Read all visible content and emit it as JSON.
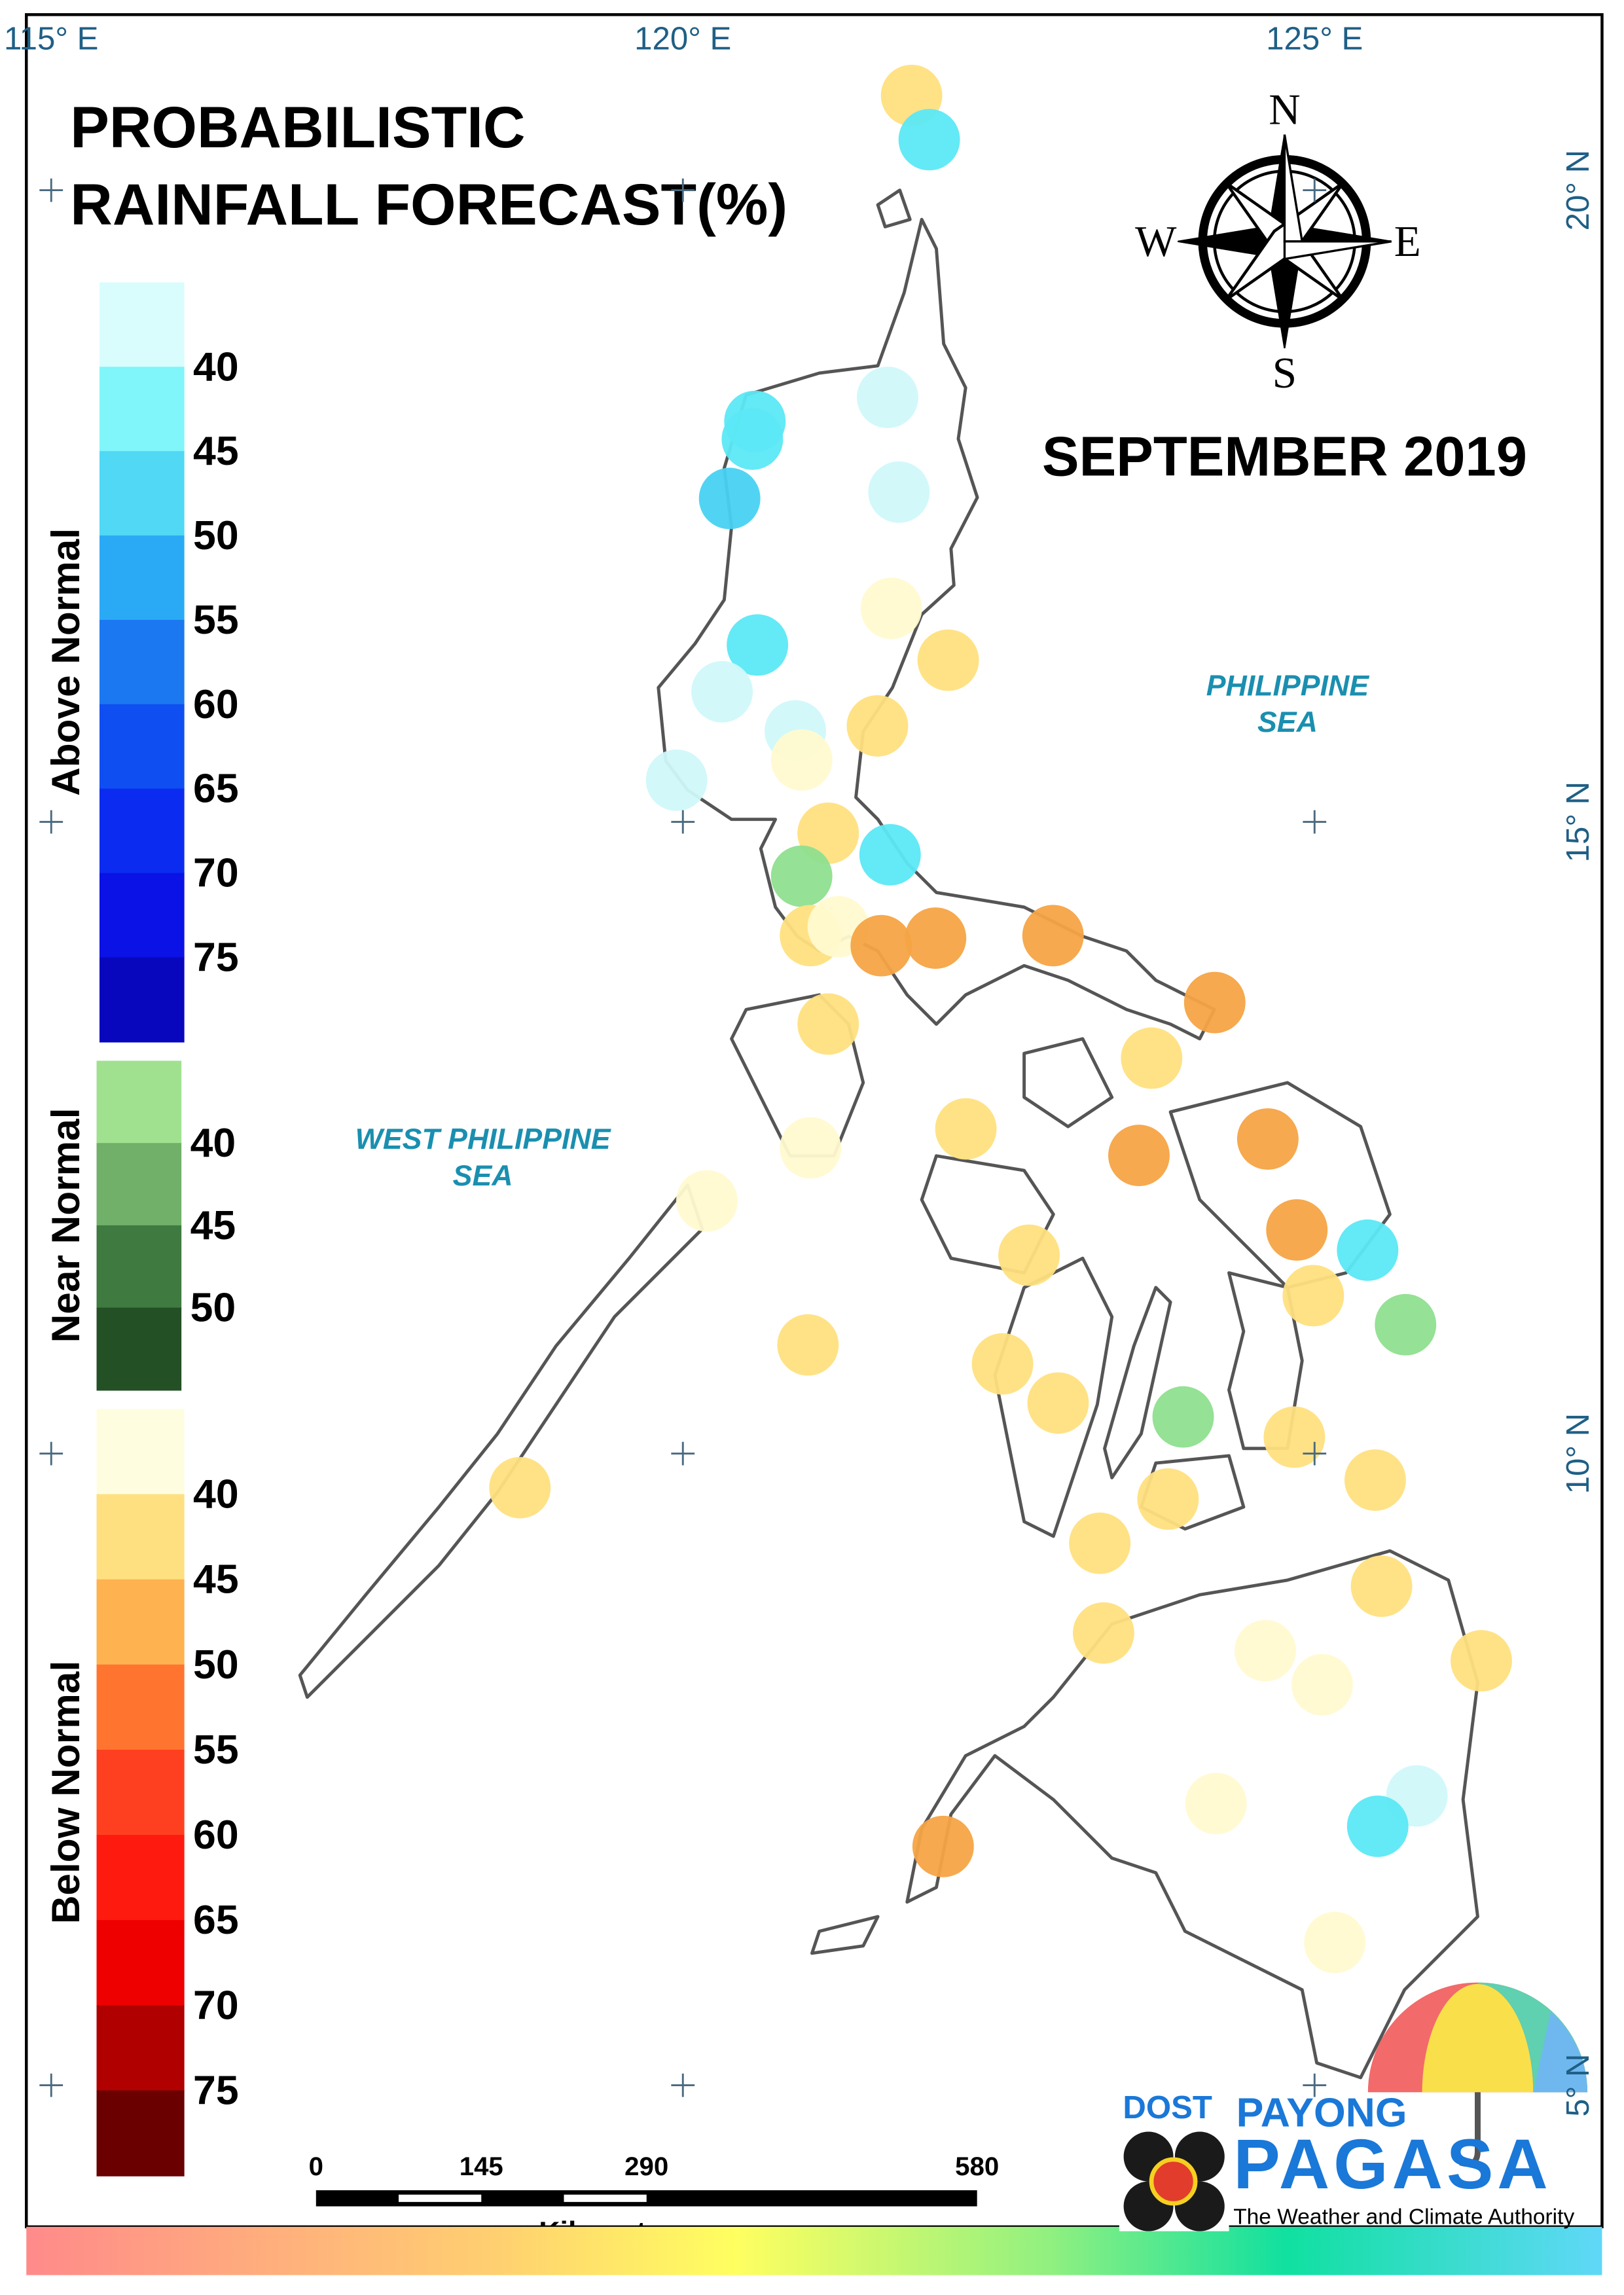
{
  "title": [
    "PROBABILISTIC",
    "RAINFALL FORECAST(%)"
  ],
  "period": "SEPTEMBER 2019",
  "compass": [
    "N",
    "E",
    "S",
    "W"
  ],
  "lon_ticks": [
    {
      "value": 115,
      "label": "115° E"
    },
    {
      "value": 120,
      "label": "120° E"
    },
    {
      "value": 125,
      "label": "125° E"
    }
  ],
  "lat_ticks": [
    {
      "value": 20,
      "label": "20° N"
    },
    {
      "value": 15,
      "label": "15° N"
    },
    {
      "value": 10,
      "label": "10° N"
    },
    {
      "value": 5,
      "label": "5° N"
    }
  ],
  "seas": [
    [
      "PHILIPPINE",
      "SEA"
    ],
    [
      "WEST PHILIPPINE",
      "SEA"
    ]
  ],
  "legend": [
    {
      "title": "Above Normal",
      "colors": [
        "#d9fdfd",
        "#80f5fa",
        "#50d8f5",
        "#2aaaf5",
        "#1b78f0",
        "#0f4ef0",
        "#0b2cf0",
        "#0a12e6",
        "#0807bd"
      ],
      "labels": [
        40,
        45,
        50,
        55,
        60,
        65,
        70,
        75
      ]
    },
    {
      "title": "Near Normal",
      "colors": [
        "#a0e190",
        "#70b068",
        "#3f7a40",
        "#245025"
      ],
      "labels": [
        40,
        45,
        50
      ]
    },
    {
      "title": "Below Normal",
      "colors": [
        "#fffde0",
        "#ffe080",
        "#ffb250",
        "#ff7530",
        "#ff4020",
        "#ff1a10",
        "#ee0000",
        "#b00000",
        "#6a0000"
      ],
      "labels": [
        40,
        45,
        50,
        55,
        60,
        65,
        70,
        75
      ]
    }
  ],
  "scale": {
    "ticks": [
      0,
      145,
      290,
      580
    ],
    "unit": "Kilometers"
  },
  "logo": {
    "agency": "DOST",
    "brand": [
      "PAYONG",
      "PAGASA"
    ],
    "tagline": "The Weather and Climate Authority"
  },
  "stations": [
    {
      "lon": 121.81,
      "lat": 20.75,
      "color": "#ffe080"
    },
    {
      "lon": 121.95,
      "lat": 20.4,
      "color": "#5ce8f5"
    },
    {
      "lon": 121.62,
      "lat": 18.36,
      "color": "#d0f8fa"
    },
    {
      "lon": 120.57,
      "lat": 18.17,
      "color": "#5ce8f5"
    },
    {
      "lon": 120.55,
      "lat": 18.03,
      "color": "#5ce8f5"
    },
    {
      "lon": 120.37,
      "lat": 17.56,
      "color": "#48d2f2"
    },
    {
      "lon": 121.71,
      "lat": 17.61,
      "color": "#d0f8fa"
    },
    {
      "lon": 121.65,
      "lat": 16.69,
      "color": "#fffad0"
    },
    {
      "lon": 122.1,
      "lat": 16.28,
      "color": "#ffe080"
    },
    {
      "lon": 120.59,
      "lat": 16.4,
      "color": "#5ce8f5"
    },
    {
      "lon": 120.31,
      "lat": 16.03,
      "color": "#d0f8fa"
    },
    {
      "lon": 121.54,
      "lat": 15.76,
      "color": "#ffe080"
    },
    {
      "lon": 120.89,
      "lat": 15.72,
      "color": "#d0f8fa"
    },
    {
      "lon": 120.94,
      "lat": 15.49,
      "color": "#fffad0"
    },
    {
      "lon": 119.95,
      "lat": 15.33,
      "color": "#d0f8fa"
    },
    {
      "lon": 121.15,
      "lat": 14.91,
      "color": "#ffe080"
    },
    {
      "lon": 121.64,
      "lat": 14.74,
      "color": "#5ce8f5"
    },
    {
      "lon": 120.94,
      "lat": 14.57,
      "color": "#8fdf8f"
    },
    {
      "lon": 121.01,
      "lat": 14.1,
      "color": "#ffe080"
    },
    {
      "lon": 121.23,
      "lat": 14.17,
      "color": "#fffad0"
    },
    {
      "lon": 121.57,
      "lat": 14.02,
      "color": "#f6a444"
    },
    {
      "lon": 122.0,
      "lat": 14.08,
      "color": "#f6a444"
    },
    {
      "lon": 122.93,
      "lat": 14.1,
      "color": "#f6a444"
    },
    {
      "lon": 124.21,
      "lat": 13.57,
      "color": "#f6a444"
    },
    {
      "lon": 121.15,
      "lat": 13.4,
      "color": "#ffe080"
    },
    {
      "lon": 123.71,
      "lat": 13.13,
      "color": "#ffe080"
    },
    {
      "lon": 122.24,
      "lat": 12.57,
      "color": "#ffe080"
    },
    {
      "lon": 121.01,
      "lat": 12.42,
      "color": "#fffad0"
    },
    {
      "lon": 123.61,
      "lat": 12.36,
      "color": "#f6a444"
    },
    {
      "lon": 124.63,
      "lat": 12.49,
      "color": "#f6a444"
    },
    {
      "lon": 120.19,
      "lat": 12.0,
      "color": "#fffad0"
    },
    {
      "lon": 124.86,
      "lat": 11.77,
      "color": "#f6a444"
    },
    {
      "lon": 125.42,
      "lat": 11.61,
      "color": "#5ce8f5"
    },
    {
      "lon": 122.74,
      "lat": 11.57,
      "color": "#ffe080"
    },
    {
      "lon": 124.99,
      "lat": 11.25,
      "color": "#ffe080"
    },
    {
      "lon": 125.72,
      "lat": 11.02,
      "color": "#8fdf8f"
    },
    {
      "lon": 120.99,
      "lat": 10.86,
      "color": "#ffe080"
    },
    {
      "lon": 122.53,
      "lat": 10.71,
      "color": "#ffe080"
    },
    {
      "lon": 122.97,
      "lat": 10.4,
      "color": "#ffe080"
    },
    {
      "lon": 123.96,
      "lat": 10.29,
      "color": "#8fdf8f"
    },
    {
      "lon": 124.84,
      "lat": 10.13,
      "color": "#ffe080"
    },
    {
      "lon": 125.48,
      "lat": 9.79,
      "color": "#ffe080"
    },
    {
      "lon": 118.71,
      "lat": 9.73,
      "color": "#ffe080"
    },
    {
      "lon": 123.84,
      "lat": 9.64,
      "color": "#ffe080"
    },
    {
      "lon": 123.3,
      "lat": 9.29,
      "color": "#ffe080"
    },
    {
      "lon": 125.53,
      "lat": 8.95,
      "color": "#ffe080"
    },
    {
      "lon": 123.33,
      "lat": 8.58,
      "color": "#ffe080"
    },
    {
      "lon": 124.61,
      "lat": 8.44,
      "color": "#fffad0"
    },
    {
      "lon": 125.06,
      "lat": 8.17,
      "color": "#fffad0"
    },
    {
      "lon": 126.32,
      "lat": 8.36,
      "color": "#ffe080"
    },
    {
      "lon": 124.22,
      "lat": 7.23,
      "color": "#fffad0"
    },
    {
      "lon": 125.81,
      "lat": 7.29,
      "color": "#d0f8fa"
    },
    {
      "lon": 125.5,
      "lat": 7.05,
      "color": "#5ce8f5"
    },
    {
      "lon": 122.06,
      "lat": 6.89,
      "color": "#f6a444"
    },
    {
      "lon": 125.16,
      "lat": 6.13,
      "color": "#fffad0"
    }
  ]
}
